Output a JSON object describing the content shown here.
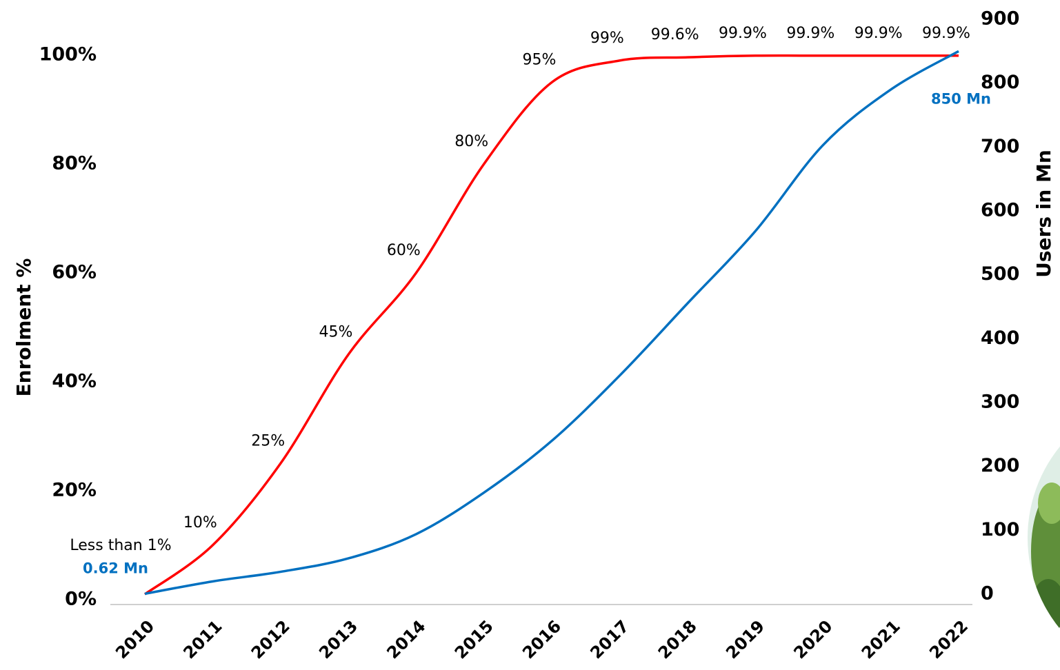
{
  "chart_data": {
    "type": "line",
    "categories": [
      "2010",
      "2011",
      "2012",
      "2013",
      "2014",
      "2015",
      "2016",
      "2017",
      "2018",
      "2019",
      "2020",
      "2021",
      "2022"
    ],
    "series": [
      {
        "name": "Enrolment %",
        "color": "#ff0000",
        "axis": "y",
        "values": [
          1,
          10,
          25,
          45,
          60,
          80,
          95,
          99,
          99.6,
          99.9,
          99.9,
          99.9,
          99.9
        ],
        "value_labels": [
          "Less than 1%",
          "10%",
          "25%",
          "45%",
          "60%",
          "80%",
          "95%",
          "99%",
          "99.6%",
          "99.9%",
          "99.9%",
          "99.9%",
          "99.9%"
        ]
      },
      {
        "name": "Users in Mn",
        "color": "#0070c0",
        "axis": "y2",
        "values": [
          0.62,
          20,
          35,
          56,
          94,
          159,
          240,
          342,
          455,
          568,
          703,
          790,
          850
        ],
        "value_labels": [
          "0.62 Mn",
          null,
          null,
          null,
          null,
          null,
          null,
          null,
          null,
          null,
          null,
          null,
          "850 Mn"
        ]
      }
    ],
    "y_label": "Enrolment %",
    "y2_label": "Users in Mn",
    "ylim": [
      0,
      100
    ],
    "yticks": [
      {
        "value": 0,
        "label": "0%"
      },
      {
        "value": 20,
        "label": "20%"
      },
      {
        "value": 40,
        "label": "40%"
      },
      {
        "value": 60,
        "label": "60%"
      },
      {
        "value": 80,
        "label": "80%"
      },
      {
        "value": 100,
        "label": "100%"
      }
    ],
    "y2lim": [
      0,
      900
    ],
    "y2ticks": [
      0,
      100,
      200,
      300,
      400,
      500,
      600,
      700,
      800,
      900
    ]
  }
}
